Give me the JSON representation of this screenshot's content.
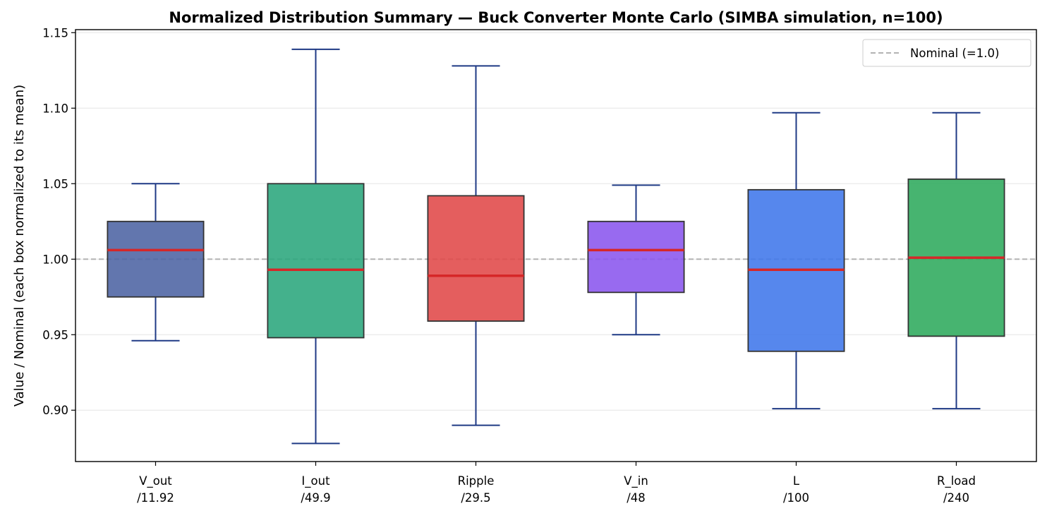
{
  "chart_data": {
    "type": "box",
    "title": "Normalized Distribution Summary — Buck Converter Monte Carlo (SIMBA simulation, n=100)",
    "xlabel": "",
    "ylabel": "Value / Nominal  (each box normalized to its mean)",
    "ylim": [
      0.866,
      1.152
    ],
    "yticks": [
      0.9,
      0.95,
      1.0,
      1.05,
      1.1,
      1.15
    ],
    "ytick_labels": [
      "0.90",
      "0.95",
      "1.00",
      "1.05",
      "1.10",
      "1.15"
    ],
    "grid": "horizontal",
    "reference_line": {
      "value": 1.0,
      "label": "Nominal (=1.0)",
      "style": "dashed",
      "color": "#b3b3b3"
    },
    "legend": {
      "placement": "top-right",
      "entries": [
        "Nominal (=1.0)"
      ]
    },
    "colors": {
      "whisker": "#1f3a85",
      "median": "#d62728",
      "box_edge": "#333333",
      "grid": "#e5e5e5"
    },
    "boxes": [
      {
        "label_line1": "V_out",
        "label_line2": "/11.92",
        "whisker_low": 0.946,
        "q1": 0.975,
        "median": 1.006,
        "q3": 1.025,
        "whisker_high": 1.05,
        "color": "#4c63a3"
      },
      {
        "label_line1": "I_out",
        "label_line2": "/49.9",
        "whisker_low": 0.878,
        "q1": 0.948,
        "median": 0.993,
        "q3": 1.05,
        "whisker_high": 1.139,
        "color": "#2aa67c"
      },
      {
        "label_line1": "Ripple",
        "label_line2": "/29.5",
        "whisker_low": 0.89,
        "q1": 0.959,
        "median": 0.989,
        "q3": 1.042,
        "whisker_high": 1.128,
        "color": "#e04848"
      },
      {
        "label_line1": "V_in",
        "label_line2": "/48",
        "whisker_low": 0.95,
        "q1": 0.978,
        "median": 1.006,
        "q3": 1.025,
        "whisker_high": 1.049,
        "color": "#8a55ee"
      },
      {
        "label_line1": "L",
        "label_line2": "/100",
        "whisker_low": 0.901,
        "q1": 0.939,
        "median": 0.993,
        "q3": 1.046,
        "whisker_high": 1.097,
        "color": "#3f76ea"
      },
      {
        "label_line1": "R_load",
        "label_line2": "/240",
        "whisker_low": 0.901,
        "q1": 0.949,
        "median": 1.001,
        "q3": 1.053,
        "whisker_high": 1.097,
        "color": "#2eaa5c"
      }
    ]
  }
}
